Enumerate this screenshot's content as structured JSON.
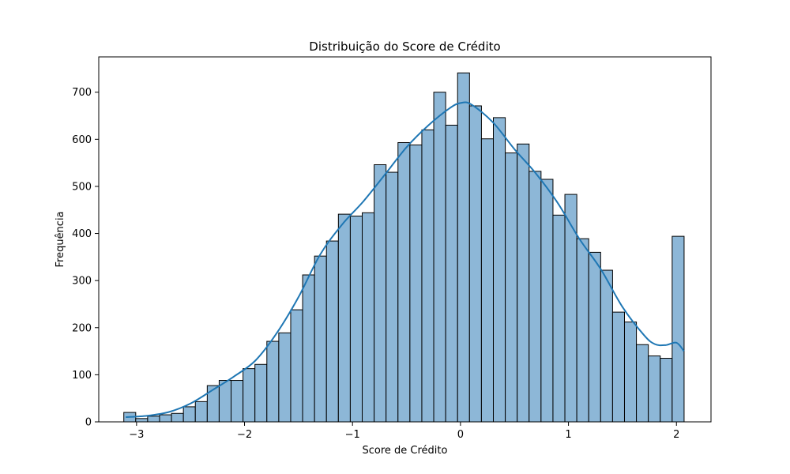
{
  "chart_data": {
    "type": "bar",
    "subtype": "histogram-with-kde",
    "title": "Distribuição do Score de Crédito",
    "xlabel": "Score de Crédito",
    "ylabel": "Frequência",
    "xlim": [
      -3.35,
      2.32
    ],
    "ylim": [
      0,
      775
    ],
    "xticks": [
      -3,
      -2,
      -1,
      0,
      1,
      2
    ],
    "xtick_labels": [
      "−3",
      "−2",
      "−1",
      "0",
      "1",
      "2"
    ],
    "yticks": [
      0,
      100,
      200,
      300,
      400,
      500,
      600,
      700
    ],
    "ytick_labels": [
      "0",
      "100",
      "200",
      "300",
      "400",
      "500",
      "600",
      "700"
    ],
    "grid": false,
    "legend": "none",
    "bar_color": "#8db7d7",
    "edge_color": "#000000",
    "kde_color": "#1f77b4",
    "bin_start": -3.118,
    "bin_width": 0.1104,
    "values": [
      20,
      7,
      12,
      15,
      18,
      32,
      43,
      77,
      88,
      88,
      113,
      122,
      171,
      189,
      238,
      312,
      352,
      384,
      441,
      437,
      444,
      546,
      530,
      593,
      588,
      620,
      700,
      630,
      741,
      671,
      601,
      646,
      571,
      590,
      532,
      515,
      439,
      483,
      389,
      360,
      322,
      233,
      212,
      164,
      140,
      135,
      394
    ],
    "kde": {
      "x": [
        -3.1,
        -2.9,
        -2.7,
        -2.5,
        -2.3,
        -2.1,
        -1.9,
        -1.7,
        -1.5,
        -1.3,
        -1.1,
        -0.9,
        -0.7,
        -0.5,
        -0.3,
        -0.1,
        0.0,
        0.1,
        0.3,
        0.5,
        0.7,
        0.9,
        1.1,
        1.3,
        1.5,
        1.7,
        1.8,
        1.9,
        2.0,
        2.07
      ],
      "y": [
        10,
        13,
        21,
        39,
        67,
        96,
        130,
        189,
        265,
        355,
        418,
        468,
        525,
        583,
        629,
        666,
        677,
        674,
        636,
        579,
        527,
        465,
        389,
        324,
        244,
        184,
        165,
        163,
        168,
        150
      ]
    }
  }
}
